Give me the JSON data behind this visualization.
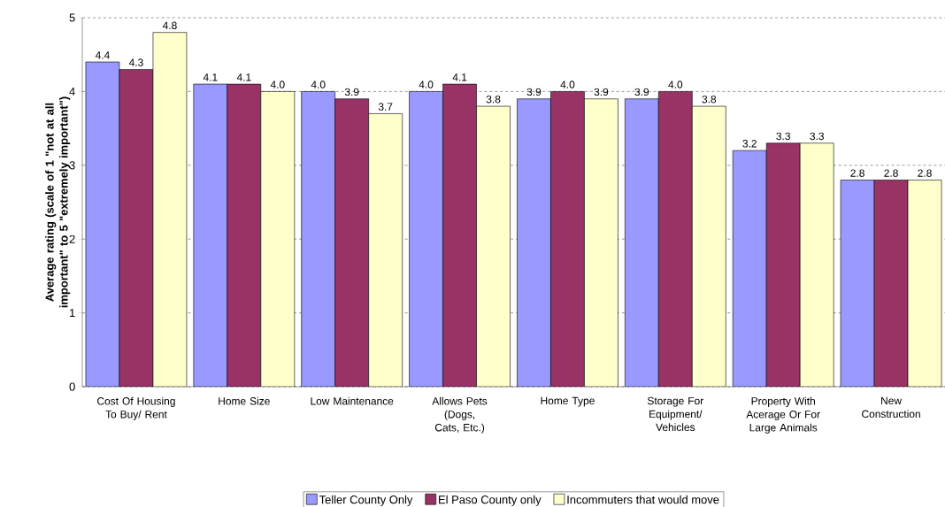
{
  "chart_data": {
    "type": "bar",
    "ylabel": "Average rating (scale of 1 \"not at all important\" to 5 \"extremely important\")",
    "categories": [
      "Cost Of Housing To Buy/ Rent",
      "Home Size",
      "Low Maintenance",
      "Allows Pets (Dogs, Cats, Etc.)",
      "Home Type",
      "Storage For Equipment/ Vehicles",
      "Property With Acerage Or For Large Animals",
      "New Construction"
    ],
    "series": [
      {
        "name": "Teller County Only",
        "color": "#9999ff",
        "values": [
          4.4,
          4.1,
          4.0,
          4.0,
          3.9,
          3.9,
          3.2,
          2.8
        ],
        "value_labels": [
          "4.4",
          "4.1",
          "4.0",
          "4.0",
          "3.9",
          "3.9",
          "3.2",
          "2.8"
        ]
      },
      {
        "name": "El Paso County only",
        "color": "#993366",
        "values": [
          4.3,
          4.1,
          3.9,
          4.1,
          4.0,
          4.0,
          3.3,
          2.8
        ],
        "value_labels": [
          "4.3",
          "4.1",
          "3.9",
          "4.1",
          "4.0",
          "4.0",
          "3.3",
          "2.8"
        ]
      },
      {
        "name": "Incommuters that would move",
        "color": "#ffffcc",
        "values": [
          4.8,
          4.0,
          3.7,
          3.8,
          3.9,
          3.8,
          3.3,
          2.8
        ],
        "value_labels": [
          "4.8",
          "4.0",
          "3.7",
          "3.8",
          "3.9",
          "3.8",
          "3.3",
          "2.8"
        ]
      }
    ],
    "ylim": [
      0,
      5
    ],
    "yticks": [
      0,
      1,
      2,
      3,
      4,
      5
    ],
    "grid": "y",
    "legend": "bottom"
  }
}
